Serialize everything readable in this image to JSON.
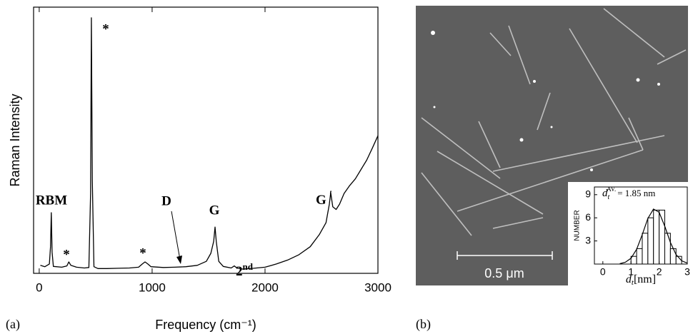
{
  "chart_data": [
    {
      "type": "line",
      "ylabel": "Raman Intensity",
      "xlabel": "Frequency (cm⁻¹)",
      "xlim": [
        -50,
        3000
      ],
      "ylim": [
        0,
        100
      ],
      "xticks": [
        0,
        1000,
        2000,
        3000
      ],
      "series": [
        {
          "color": "#000000",
          "x": [
            10,
            50,
            90,
            100,
            107,
            114,
            125,
            200,
            245,
            262,
            280,
            330,
            400,
            440,
            455,
            462,
            470,
            485,
            520,
            600,
            700,
            800,
            880,
            915,
            937,
            960,
            990,
            1100,
            1200,
            1300,
            1400,
            1480,
            1520,
            1545,
            1557,
            1568,
            1590,
            1630,
            1700,
            1728,
            1750,
            1800,
            1900,
            2000,
            2100,
            2200,
            2300,
            2400,
            2480,
            2540,
            2570,
            2582,
            2600,
            2630,
            2660,
            2700,
            2750,
            2800,
            2850,
            2900,
            2950,
            3000
          ],
          "values": [
            3.0,
            2.5,
            3.5,
            10,
            22.8,
            8,
            2.6,
            2.3,
            2.8,
            4.3,
            3.0,
            2.3,
            2.0,
            2.2,
            30,
            96,
            35,
            2.5,
            1.8,
            1.8,
            1.9,
            2.0,
            2.3,
            3.6,
            4.3,
            3.6,
            2.5,
            2.2,
            2.3,
            2.5,
            3.0,
            4.5,
            7.5,
            12,
            17.4,
            12,
            4.5,
            2.6,
            2.0,
            2.8,
            2.0,
            1.6,
            1.9,
            2.3,
            3.5,
            5.0,
            7.0,
            10.0,
            14.5,
            19,
            26,
            30.3,
            25,
            24,
            26,
            30,
            33,
            35.5,
            39,
            42.5,
            47,
            51.7
          ]
        }
      ],
      "annotations": [
        "RBM",
        "*",
        "*",
        "*",
        "D",
        "G",
        "2",
        "nd",
        "G",
        "′"
      ]
    },
    {
      "type": "histogram",
      "ylabel": "NUMBER",
      "xlabel": [
        "d",
        "t",
        "[nm]"
      ],
      "annotation": [
        "d",
        "t",
        "AV.",
        "= 1.85 nm"
      ],
      "xlim": [
        -0.3,
        3.0
      ],
      "ylim": [
        0,
        10
      ],
      "xticks": [
        0,
        1,
        2,
        3
      ],
      "yticks": [
        3,
        6,
        9
      ],
      "bins": [
        1.0,
        1.2,
        1.4,
        1.6,
        1.8,
        2.0,
        2.2,
        2.4,
        2.6,
        2.8
      ],
      "counts": [
        1,
        2,
        4,
        6,
        7,
        7,
        4,
        2,
        1
      ],
      "color": "#ffffff",
      "fit": {
        "x": [
          0.6,
          0.8,
          1.0,
          1.2,
          1.4,
          1.6,
          1.8,
          2.0,
          2.2,
          2.4,
          2.6,
          2.8,
          3.0
        ],
        "values": [
          0.05,
          0.23,
          0.75,
          1.92,
          3.82,
          5.92,
          7.14,
          6.71,
          4.91,
          2.8,
          1.24,
          0.43,
          0.12
        ]
      }
    }
  ],
  "image": {
    "scale_bar": "0.5 μm"
  },
  "panel_labels": [
    "(a)",
    "(b)"
  ]
}
